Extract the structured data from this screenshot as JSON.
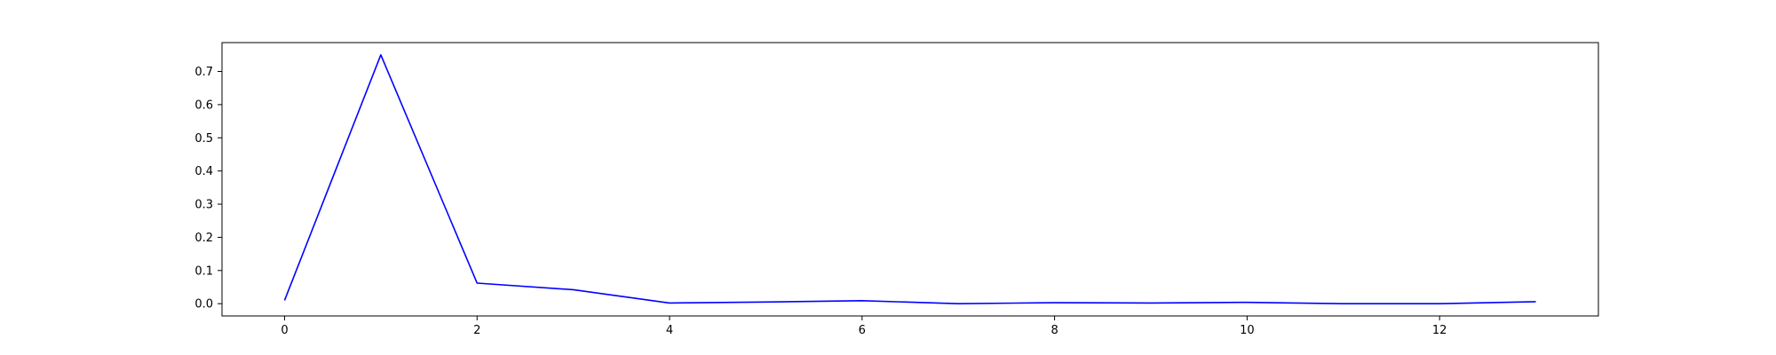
{
  "chart_data": {
    "type": "line",
    "title": "",
    "xlabel": "",
    "ylabel": "",
    "xlim": [
      -0.65,
      13.65
    ],
    "ylim": [
      -0.037,
      0.787
    ],
    "x_ticks": [
      0,
      2,
      4,
      6,
      8,
      10,
      12
    ],
    "y_ticks": [
      0.0,
      0.1,
      0.2,
      0.3,
      0.4,
      0.5,
      0.6,
      0.7
    ],
    "grid": false,
    "legend": "none",
    "series": [
      {
        "color": "#0000ff",
        "x": [
          0,
          1,
          2,
          3,
          4,
          5,
          6,
          7,
          8,
          9,
          10,
          11,
          12,
          13
        ],
        "y": [
          0.01,
          0.75,
          0.062,
          0.042,
          0.002,
          0.005,
          0.009,
          0.0,
          0.003,
          0.002,
          0.004,
          0.0,
          0.0,
          0.006
        ]
      }
    ]
  }
}
